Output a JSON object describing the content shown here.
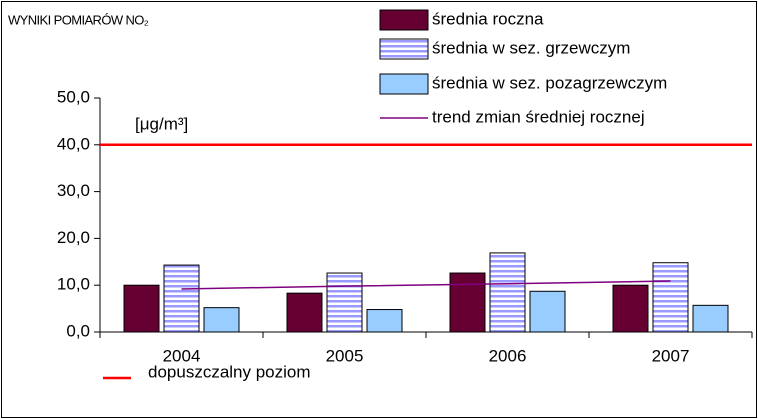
{
  "chart_data": {
    "type": "bar",
    "title": "WYNIKI POMIARÓW NO₂",
    "unit_label": "[μg/m³]",
    "categories": [
      "2004",
      "2005",
      "2006",
      "2007"
    ],
    "series": [
      {
        "name": "średnia roczna",
        "color": "#660033",
        "values": [
          10.0,
          8.3,
          12.6,
          10.0
        ]
      },
      {
        "name": "średnia w sez. grzewczym",
        "color": "#9999ff",
        "pattern": "horizontal-stripes",
        "values": [
          14.3,
          12.6,
          16.9,
          14.8
        ]
      },
      {
        "name": "średnia w sez. pozagrzewczym",
        "color": "#99ccff",
        "values": [
          5.2,
          4.8,
          8.7,
          5.7
        ]
      },
      {
        "name": "trend zmian średniej rocznej",
        "type": "line",
        "color": "#800080",
        "values": [
          9.2,
          9.8,
          10.3,
          10.9
        ]
      }
    ],
    "reference_lines": [
      {
        "name": "dopuszczalny poziom",
        "value": 40,
        "color": "#ff0000"
      }
    ],
    "ylim": [
      0,
      50
    ],
    "yticks": [
      {
        "value": 0,
        "label": "0,0"
      },
      {
        "value": 10,
        "label": "10,0"
      },
      {
        "value": 20,
        "label": "20,0"
      },
      {
        "value": 30,
        "label": "30,0"
      },
      {
        "value": 40,
        "label": "40,0"
      },
      {
        "value": 50,
        "label": "50,0"
      }
    ],
    "grid": false
  }
}
